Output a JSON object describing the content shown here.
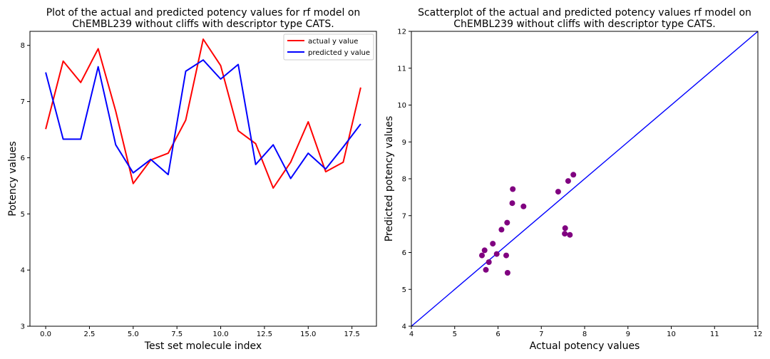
{
  "chart_data": [
    {
      "type": "line",
      "title_line1": "Plot of the actual and predicted potency values for rf model on",
      "title_line2": "ChEMBL239 without cliffs with descriptor type CATS.",
      "xlabel": "Test set molecule index",
      "ylabel": "Potency values",
      "xlim": [
        -0.9,
        18.9
      ],
      "ylim": [
        3,
        8.25
      ],
      "xticks": [
        "0.0",
        "2.5",
        "5.0",
        "7.5",
        "10.0",
        "12.5",
        "15.0",
        "17.5"
      ],
      "xtick_values": [
        0,
        2.5,
        5,
        7.5,
        10,
        12.5,
        15,
        17.5
      ],
      "yticks": [
        "3",
        "4",
        "5",
        "6",
        "7",
        "8"
      ],
      "ytick_values": [
        3,
        4,
        5,
        6,
        7,
        8
      ],
      "legend_position": "top-right",
      "x": [
        0,
        1,
        2,
        3,
        4,
        5,
        6,
        7,
        8,
        9,
        10,
        11,
        12,
        13,
        14,
        15,
        16,
        17,
        18
      ],
      "series": [
        {
          "name": "actual y value",
          "color": "#ff0000",
          "values": [
            6.51,
            7.72,
            7.34,
            7.94,
            6.83,
            5.54,
            5.96,
            6.08,
            6.67,
            8.11,
            7.64,
            6.48,
            6.25,
            5.46,
            5.92,
            6.64,
            5.75,
            5.92,
            7.25
          ]
        },
        {
          "name": "predicted y value",
          "color": "#0000ff",
          "values": [
            7.52,
            6.33,
            6.33,
            7.62,
            6.23,
            5.73,
            5.97,
            5.7,
            7.54,
            7.74,
            7.4,
            7.66,
            5.88,
            6.23,
            5.63,
            6.08,
            5.8,
            6.19,
            6.6
          ]
        }
      ]
    },
    {
      "type": "scatter",
      "title_line1": "Scatterplot of the actual and predicted potency values rf model on",
      "title_line2": "ChEMBL239 without cliffs with descriptor type CATS.",
      "xlabel": "Actual potency values",
      "ylabel": "Predicted potency values",
      "xlim": [
        4,
        12
      ],
      "ylim": [
        4,
        12
      ],
      "xticks": [
        "4",
        "5",
        "6",
        "7",
        "8",
        "9",
        "10",
        "11",
        "12"
      ],
      "xtick_values": [
        4,
        5,
        6,
        7,
        8,
        9,
        10,
        11,
        12
      ],
      "yticks": [
        "4",
        "5",
        "6",
        "7",
        "8",
        "9",
        "10",
        "11",
        "12"
      ],
      "ytick_values": [
        4,
        5,
        6,
        7,
        8,
        9,
        10,
        11,
        12
      ],
      "point_color": "#800080",
      "line_color": "#0000ff",
      "identity_line": [
        [
          4,
          4
        ],
        [
          12,
          12
        ]
      ],
      "points": [
        [
          5.63,
          5.92
        ],
        [
          5.69,
          6.06
        ],
        [
          5.72,
          5.53
        ],
        [
          5.79,
          5.74
        ],
        [
          5.88,
          6.24
        ],
        [
          5.97,
          5.96
        ],
        [
          6.08,
          6.62
        ],
        [
          6.19,
          5.92
        ],
        [
          6.21,
          6.81
        ],
        [
          6.22,
          5.45
        ],
        [
          6.34,
          7.72
        ],
        [
          6.33,
          7.34
        ],
        [
          6.59,
          7.25
        ],
        [
          7.39,
          7.65
        ],
        [
          7.54,
          6.51
        ],
        [
          7.55,
          6.66
        ],
        [
          7.62,
          7.94
        ],
        [
          7.66,
          6.48
        ],
        [
          7.74,
          8.11
        ]
      ]
    }
  ]
}
